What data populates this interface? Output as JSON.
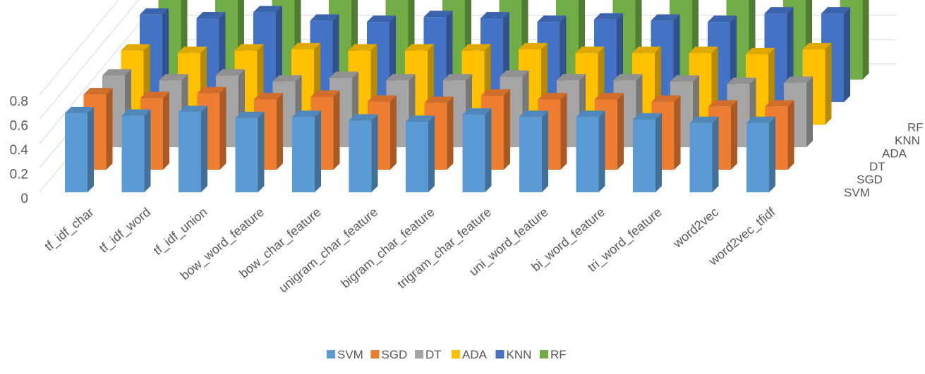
{
  "chart_data": {
    "type": "bar",
    "title": "",
    "xlabel": "",
    "ylabel": "",
    "ylim": [
      0,
      0.8
    ],
    "y_ticks": [
      "0",
      "0.2",
      "0.4",
      "0.6",
      "0.8"
    ],
    "y_tick_values": [
      0,
      0.2,
      0.4,
      0.6,
      0.8
    ],
    "grid": true,
    "three_d": true,
    "legend_position": "bottom",
    "categories": [
      "tf_idf_char",
      "tf_idf_word",
      "tf_idf_union",
      "bow_word_feature",
      "bow_char_feature",
      "unigram_char_feature",
      "bigram_char_feature",
      "trigram_char_feature",
      "uni_word_feature",
      "bi_word_feature",
      "tri_word_feature",
      "word2vec",
      "word2vec_tfidf"
    ],
    "series": [
      {
        "name": "SVM",
        "color": "#5B9BD5",
        "values": [
          0.65,
          0.63,
          0.66,
          0.61,
          0.62,
          0.59,
          0.58,
          0.64,
          0.62,
          0.62,
          0.6,
          0.57,
          0.57
        ]
      },
      {
        "name": "SGD",
        "color": "#ED7D31",
        "values": [
          0.62,
          0.59,
          0.63,
          0.58,
          0.6,
          0.56,
          0.55,
          0.61,
          0.58,
          0.58,
          0.56,
          0.52,
          0.52
        ]
      },
      {
        "name": "DT",
        "color": "#A5A5A5",
        "values": [
          0.59,
          0.55,
          0.59,
          0.54,
          0.57,
          0.55,
          0.55,
          0.58,
          0.55,
          0.55,
          0.54,
          0.52,
          0.53
        ]
      },
      {
        "name": "ADA",
        "color": "#FFC000",
        "values": [
          0.61,
          0.59,
          0.61,
          0.62,
          0.61,
          0.61,
          0.61,
          0.62,
          0.59,
          0.59,
          0.59,
          0.58,
          0.62
        ]
      },
      {
        "name": "KNN",
        "color": "#4472C4",
        "values": [
          0.72,
          0.69,
          0.74,
          0.67,
          0.66,
          0.7,
          0.69,
          0.66,
          0.68,
          0.67,
          0.66,
          0.73,
          0.73
        ]
      },
      {
        "name": "RF",
        "color": "#70AD47",
        "values": [
          0.8,
          0.79,
          0.81,
          0.79,
          0.79,
          0.8,
          0.81,
          0.82,
          0.8,
          0.75,
          0.73,
          0.8,
          0.8
        ]
      }
    ]
  }
}
